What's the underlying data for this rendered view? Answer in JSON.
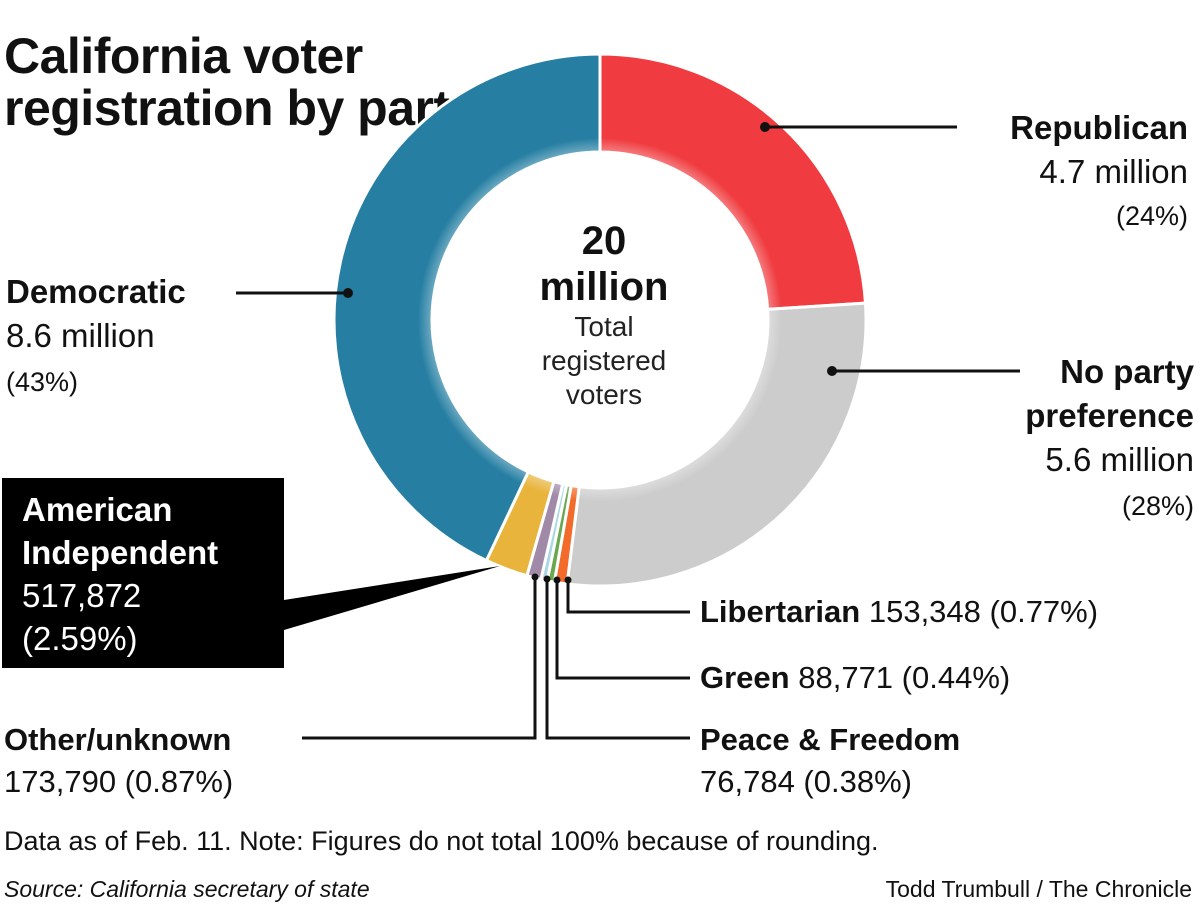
{
  "title": "California voter registration by party",
  "center": {
    "big_number": "20",
    "big_unit": "million",
    "caption_lines": [
      "Total",
      "registered",
      "voters"
    ]
  },
  "labels": {
    "republican": {
      "name": "Republican",
      "value": "4.7 million",
      "pct": "(24%)"
    },
    "democratic": {
      "name": "Democratic",
      "value": "8.6 million",
      "pct": "(43%)"
    },
    "no_party": {
      "name_line1": "No party",
      "name_line2": "preference",
      "value": "5.6 million",
      "pct": "(28%)"
    },
    "american_independent": {
      "name_line1": "American",
      "name_line2": "Independent",
      "value": "517,872",
      "pct": "(2.59%)"
    },
    "libertarian": {
      "name": "Libertarian",
      "value": "153,348 (0.77%)"
    },
    "green": {
      "name": "Green",
      "value": "88,771 (0.44%)"
    },
    "peace_freedom": {
      "name": "Peace & Freedom",
      "value": "76,784 (0.38%)"
    },
    "other": {
      "name": "Other/unknown",
      "value": "173,790 (0.87%)"
    }
  },
  "note": "Data as of Feb. 11. Note: Figures do not total 100% because of rounding.",
  "source": "Source: California secretary of state",
  "credit": "Todd Trumbull / The Chronicle",
  "chart_data": {
    "type": "pie",
    "title": "California voter registration by party",
    "total_label": "20 million Total registered voters",
    "units": "registered voters",
    "slices": [
      {
        "name": "Republican",
        "value": 4700000,
        "percent": 24,
        "color": "#f03c40"
      },
      {
        "name": "No party preference",
        "value": 5600000,
        "percent": 28,
        "color": "#cccccc"
      },
      {
        "name": "Libertarian",
        "value": 153348,
        "percent": 0.77,
        "color": "#f26b2b"
      },
      {
        "name": "Green",
        "value": 88771,
        "percent": 0.44,
        "color": "#6aa84f"
      },
      {
        "name": "Peace & Freedom",
        "value": 76784,
        "percent": 0.38,
        "color": "#a9d8e4"
      },
      {
        "name": "Other/unknown",
        "value": 173790,
        "percent": 0.87,
        "color": "#a08aa8"
      },
      {
        "name": "American Independent",
        "value": 517872,
        "percent": 2.59,
        "color": "#e8b43c"
      },
      {
        "name": "Democratic",
        "value": 8600000,
        "percent": 43,
        "color": "#267fa3"
      }
    ]
  }
}
